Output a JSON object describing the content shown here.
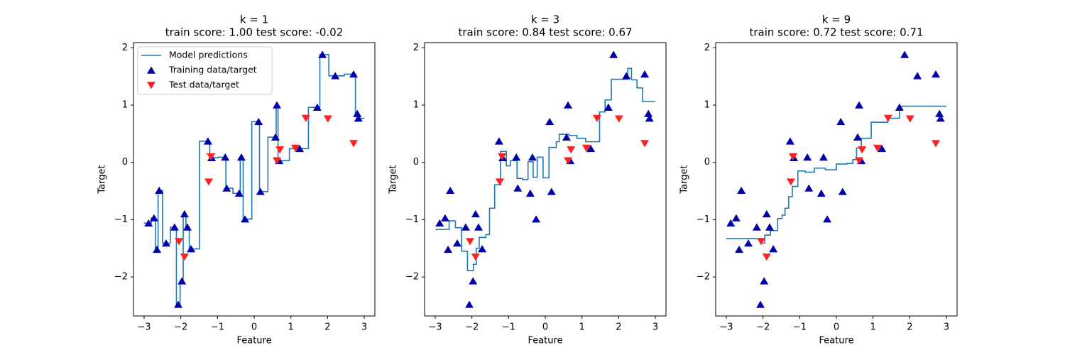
{
  "chart_data": [
    {
      "type": "line",
      "title": "k = 1",
      "subtitle": "train score: 1.00 test score: -0.02",
      "xlabel": "Feature",
      "ylabel": "Target",
      "legend": "upper left",
      "xlim": [
        -3.29,
        3.29
      ],
      "ylim": [
        -2.68,
        2.09
      ],
      "xticks": [
        {
          "value": -3,
          "label": "−3"
        },
        {
          "value": -2,
          "label": "−2"
        },
        {
          "value": -1,
          "label": "−1"
        },
        0,
        1,
        2,
        3
      ],
      "yticks": [
        {
          "value": -2,
          "label": "−2"
        },
        {
          "value": -1,
          "label": "−1"
        },
        0,
        1,
        2
      ],
      "series": [
        {
          "name": "Model predictions",
          "color": "#1f77b4",
          "step": "post",
          "x": [
            -3,
            -2.805,
            -2.69,
            -2.62,
            -2.495,
            -2.285,
            -2.12,
            -2.02,
            -1.935,
            -1.86,
            -1.77,
            -1.49,
            -1.21,
            -0.975,
            -0.77,
            -0.58,
            -0.38,
            -0.3,
            -0.065,
            0.145,
            0.375,
            0.6,
            0.65,
            0.96,
            1.48,
            1.79,
            2.035,
            2.46,
            2.76,
            2.825,
            3
          ],
          "values": [
            -1.06,
            -0.97,
            -1.52,
            -0.49,
            -1.41,
            -1.13,
            -2.48,
            -2.07,
            -0.9,
            -1.13,
            -1.51,
            0.37,
            0.08,
            0.09,
            -0.45,
            -0.54,
            0.09,
            -0.99,
            0.71,
            -0.51,
            0.44,
            1.0,
            0.03,
            0.24,
            0.96,
            1.88,
            1.51,
            1.54,
            0.85,
            0.77,
            0.77
          ]
        },
        {
          "name": "Training data/target",
          "color": "#0000aa",
          "marker": "triangle-up",
          "x": [
            -2.88,
            -2.73,
            -2.65,
            -2.59,
            -2.4,
            -2.17,
            -2.07,
            -1.97,
            -1.9,
            -1.82,
            -1.72,
            -1.26,
            -1.16,
            -0.79,
            -0.75,
            -0.41,
            -0.35,
            -0.25,
            0.12,
            0.17,
            0.58,
            0.62,
            0.68,
            1.24,
            1.72,
            1.86,
            2.21,
            2.71,
            2.81,
            2.84
          ],
          "values": [
            -1.06,
            -0.97,
            -1.52,
            -0.49,
            -1.41,
            -1.13,
            -2.48,
            -2.07,
            -0.9,
            -1.13,
            -1.51,
            0.37,
            0.08,
            0.09,
            -0.45,
            -0.54,
            0.09,
            -0.99,
            0.71,
            -0.51,
            0.44,
            1.0,
            0.03,
            0.24,
            0.96,
            1.88,
            1.51,
            1.54,
            0.85,
            0.77
          ]
        },
        {
          "name": "Test data/target",
          "color": "#ff2020",
          "marker": "triangle-down",
          "x": [
            -2.05,
            -1.9,
            -1.24,
            -1.18,
            0.62,
            0.7,
            1.12,
            1.41,
            2.01,
            2.71
          ],
          "values": [
            -1.38,
            -1.65,
            -0.34,
            0.1,
            0.03,
            0.22,
            0.25,
            0.77,
            0.76,
            0.33
          ]
        }
      ]
    },
    {
      "type": "line",
      "title": "k = 3",
      "subtitle": "train score: 0.84 test score: 0.67",
      "xlabel": "Feature",
      "ylabel": "Target",
      "xlim": [
        -3.29,
        3.29
      ],
      "ylim": [
        -2.68,
        2.09
      ],
      "xticks": [
        {
          "value": -3,
          "label": "−3"
        },
        {
          "value": -2,
          "label": "−2"
        },
        {
          "value": -1,
          "label": "−1"
        },
        0,
        1,
        2,
        3
      ],
      "yticks": [
        {
          "value": -2,
          "label": "−2"
        },
        {
          "value": -1,
          "label": "−1"
        },
        0,
        1,
        2
      ],
      "series": [
        {
          "name": "Model predictions",
          "color": "#1f77b4",
          "step": "post",
          "x": [
            -3,
            -2.62,
            -2.45,
            -2.28,
            -2.12,
            -1.96,
            -1.88,
            -1.8,
            -1.62,
            -1.52,
            -1.38,
            -1.22,
            -1.06,
            -0.95,
            -0.77,
            -0.62,
            -0.47,
            -0.33,
            -0.22,
            -0.06,
            0.1,
            0.3,
            0.38,
            0.65,
            0.86,
            1.1,
            1.48,
            1.63,
            1.8,
            2.25,
            2.35,
            2.5,
            2.65,
            3
          ],
          "values": [
            -1.17,
            -1.02,
            -1.14,
            -1.55,
            -1.89,
            -1.78,
            -1.5,
            -1.31,
            -1.26,
            -0.8,
            -0.39,
            0.19,
            -0.06,
            0.03,
            -0.28,
            -0.3,
            0.01,
            -0.26,
            0.09,
            -0.27,
            0.26,
            0.36,
            0.49,
            0.47,
            0.42,
            0.36,
            0.88,
            1.09,
            1.45,
            1.64,
            1.44,
            1.3,
            1.06,
            1.06
          ]
        },
        {
          "name": "Training data/target",
          "color": "#0000aa",
          "marker": "triangle-up",
          "x": [
            -2.88,
            -2.73,
            -2.65,
            -2.59,
            -2.4,
            -2.17,
            -2.07,
            -1.97,
            -1.9,
            -1.82,
            -1.72,
            -1.26,
            -1.16,
            -0.79,
            -0.75,
            -0.41,
            -0.35,
            -0.25,
            0.12,
            0.17,
            0.58,
            0.62,
            0.68,
            1.24,
            1.72,
            1.86,
            2.21,
            2.71,
            2.81,
            2.84
          ],
          "values": [
            -1.06,
            -0.97,
            -1.52,
            -0.49,
            -1.41,
            -1.13,
            -2.48,
            -2.07,
            -0.9,
            -1.13,
            -1.51,
            0.37,
            0.08,
            0.09,
            -0.45,
            -0.54,
            0.09,
            -0.99,
            0.71,
            -0.51,
            0.44,
            1.0,
            0.03,
            0.24,
            0.96,
            1.88,
            1.51,
            1.54,
            0.85,
            0.77
          ]
        },
        {
          "name": "Test data/target",
          "color": "#ff2020",
          "marker": "triangle-down",
          "x": [
            -2.05,
            -1.9,
            -1.24,
            -1.18,
            0.62,
            0.7,
            1.12,
            1.41,
            2.01,
            2.71
          ],
          "values": [
            -1.38,
            -1.65,
            -0.34,
            0.1,
            0.03,
            0.22,
            0.25,
            0.77,
            0.76,
            0.33
          ]
        }
      ]
    },
    {
      "type": "line",
      "title": "k = 9",
      "subtitle": "train score: 0.72 test score: 0.71",
      "xlabel": "Feature",
      "ylabel": "Target",
      "xlim": [
        -3.29,
        3.29
      ],
      "ylim": [
        -2.68,
        2.09
      ],
      "xticks": [
        {
          "value": -3,
          "label": "−3"
        },
        {
          "value": -2,
          "label": "−2"
        },
        {
          "value": -1,
          "label": "−1"
        },
        0,
        1,
        2,
        3
      ],
      "yticks": [
        {
          "value": -2,
          "label": "−2"
        },
        {
          "value": -1,
          "label": "−1"
        },
        0,
        1,
        2
      ],
      "series": [
        {
          "name": "Model predictions",
          "color": "#1f77b4",
          "step": "post",
          "x": [
            -3,
            -2.05,
            -1.95,
            -1.8,
            -1.6,
            -1.48,
            -1.4,
            -1.3,
            -1.2,
            -1.05,
            -0.85,
            -0.6,
            -0.3,
            0.0,
            0.28,
            0.45,
            0.55,
            0.68,
            0.95,
            1.4,
            1.72,
            3
          ],
          "values": [
            -1.33,
            -1.41,
            -1.27,
            -1.19,
            -0.98,
            -0.92,
            -0.8,
            -0.6,
            -0.42,
            -0.15,
            -0.17,
            -0.1,
            -0.13,
            -0.03,
            -0.02,
            0.05,
            0.25,
            0.42,
            0.7,
            0.77,
            0.98,
            0.98
          ]
        },
        {
          "name": "Training data/target",
          "color": "#0000aa",
          "marker": "triangle-up",
          "x": [
            -2.88,
            -2.73,
            -2.65,
            -2.59,
            -2.4,
            -2.17,
            -2.07,
            -1.97,
            -1.9,
            -1.82,
            -1.72,
            -1.26,
            -1.16,
            -0.79,
            -0.75,
            -0.41,
            -0.35,
            -0.25,
            0.12,
            0.17,
            0.58,
            0.62,
            0.68,
            1.24,
            1.72,
            1.86,
            2.21,
            2.71,
            2.81,
            2.84
          ],
          "values": [
            -1.06,
            -0.97,
            -1.52,
            -0.49,
            -1.41,
            -1.13,
            -2.48,
            -2.07,
            -0.9,
            -1.13,
            -1.51,
            0.37,
            0.08,
            0.09,
            -0.45,
            -0.54,
            0.09,
            -0.99,
            0.71,
            -0.51,
            0.44,
            1.0,
            0.03,
            0.24,
            0.96,
            1.88,
            1.51,
            1.54,
            0.85,
            0.77
          ]
        },
        {
          "name": "Test data/target",
          "color": "#ff2020",
          "marker": "triangle-down",
          "x": [
            -2.05,
            -1.9,
            -1.24,
            -1.18,
            0.62,
            0.7,
            1.12,
            1.41,
            2.01,
            2.71
          ],
          "values": [
            -1.38,
            -1.65,
            -0.34,
            0.1,
            0.03,
            0.22,
            0.25,
            0.77,
            0.76,
            0.33
          ]
        }
      ]
    }
  ]
}
